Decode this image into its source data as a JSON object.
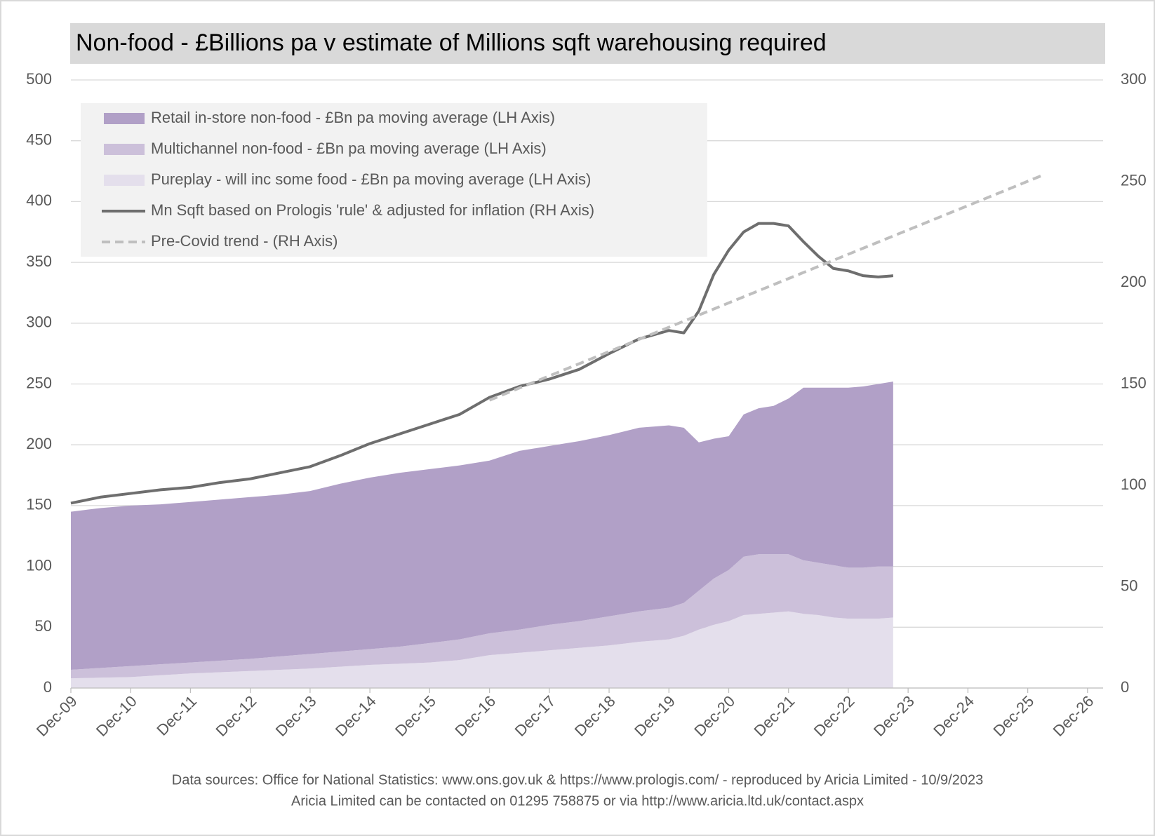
{
  "chart_data": {
    "type": "area",
    "title": "Non-food - £Billions pa v estimate of Millions sqft warehousing required",
    "x": [
      2009.92,
      2010.42,
      2010.92,
      2011.42,
      2011.92,
      2012.42,
      2012.92,
      2013.42,
      2013.92,
      2014.42,
      2014.92,
      2015.42,
      2015.92,
      2016.42,
      2016.92,
      2017.42,
      2017.92,
      2018.42,
      2018.92,
      2019.42,
      2019.92,
      2020.17,
      2020.42,
      2020.67,
      2020.92,
      2021.17,
      2021.42,
      2021.67,
      2021.92,
      2022.17,
      2022.42,
      2022.67,
      2022.92,
      2023.17,
      2023.42,
      2023.67
    ],
    "series": [
      {
        "name": "Retail in-store non-food - £Bn pa moving average (LH Axis)",
        "type": "area",
        "color": "#b1a0c7",
        "values": [
          130,
          131.5,
          132,
          131.5,
          132,
          132.5,
          133,
          133,
          134,
          138,
          141,
          143,
          143,
          143,
          142,
          147,
          147,
          148,
          149,
          151,
          150,
          144,
          122,
          115,
          110,
          117,
          120,
          122,
          128,
          142,
          144,
          146,
          148,
          149,
          150,
          152
        ]
      },
      {
        "name": "Multichannel non-food - £Bn pa moving average (LH Axis)",
        "type": "area",
        "color": "#ccc0da",
        "values": [
          7,
          8,
          9,
          9,
          9,
          9.5,
          10,
          11,
          12,
          12.5,
          13,
          14,
          16,
          17,
          18,
          19,
          21,
          22,
          24,
          25,
          26,
          27,
          32,
          38,
          42,
          48,
          49,
          48,
          47,
          44,
          43,
          43,
          42,
          42,
          43,
          42
        ]
      },
      {
        "name": "Pureplay - will inc some food - £Bn pa moving average (LH Axis)",
        "type": "area",
        "color": "#e4dfec",
        "values": [
          8,
          8.5,
          9,
          10.5,
          12,
          13,
          14,
          15,
          16,
          17.5,
          19,
          20,
          21,
          23,
          27,
          29,
          31,
          33,
          35,
          38,
          40,
          43,
          48,
          52,
          55,
          60,
          61,
          62,
          63,
          61,
          60,
          58,
          57,
          57,
          57,
          58
        ]
      },
      {
        "name": "Mn Sqft based on Prologis 'rule' & adjusted for inflation (RH Axis)",
        "type": "line",
        "axis": "y2",
        "color": "#6e6e6e",
        "values": [
          91.2,
          94.2,
          96,
          97.8,
          99,
          101.4,
          103.2,
          106.2,
          109.2,
          114.6,
          120.6,
          125.4,
          130.2,
          135,
          143.4,
          148.8,
          152.4,
          157.2,
          165,
          172.2,
          176.4,
          175.2,
          186,
          204,
          216,
          225,
          229.2,
          229.2,
          228,
          220.2,
          213,
          207,
          205.8,
          203.4,
          202.8,
          203.4
        ]
      },
      {
        "name": "Pre-Covid trend - (RH Axis)",
        "type": "line",
        "axis": "y2",
        "dashed": true,
        "color": "#bfbfbf",
        "x": [
          2016.92,
          2026.17
        ],
        "values": [
          142,
          253
        ]
      }
    ],
    "xlim": [
      2009.92,
      2027.18
    ],
    "xticks": [
      {
        "value": 2009.92,
        "label": "Dec-09"
      },
      {
        "value": 2010.92,
        "label": "Dec-10"
      },
      {
        "value": 2011.92,
        "label": "Dec-11"
      },
      {
        "value": 2012.92,
        "label": "Dec-12"
      },
      {
        "value": 2013.92,
        "label": "Dec-13"
      },
      {
        "value": 2014.92,
        "label": "Dec-14"
      },
      {
        "value": 2015.92,
        "label": "Dec-15"
      },
      {
        "value": 2016.92,
        "label": "Dec-16"
      },
      {
        "value": 2017.92,
        "label": "Dec-17"
      },
      {
        "value": 2018.92,
        "label": "Dec-18"
      },
      {
        "value": 2019.92,
        "label": "Dec-19"
      },
      {
        "value": 2020.92,
        "label": "Dec-20"
      },
      {
        "value": 2021.92,
        "label": "Dec-21"
      },
      {
        "value": 2022.92,
        "label": "Dec-22"
      },
      {
        "value": 2023.92,
        "label": "Dec-23"
      },
      {
        "value": 2024.92,
        "label": "Dec-24"
      },
      {
        "value": 2025.92,
        "label": "Dec-25"
      },
      {
        "value": 2026.92,
        "label": "Dec-26"
      }
    ],
    "ylim": [
      0,
      500
    ],
    "yticks": [
      0,
      50,
      100,
      150,
      200,
      250,
      300,
      350,
      400,
      450,
      500
    ],
    "y2lim": [
      0,
      300
    ],
    "y2ticks": [
      0,
      50,
      100,
      150,
      200,
      250,
      300
    ],
    "grid": true,
    "legend": "upper left",
    "annotations": [
      "Data sources: Office for National Statistics: www.ons.gov.uk & https://www.prologis.com/ - reproduced by Aricia Limited - 10/9/2023",
      "Aricia Limited can be contacted on 01295 758875 or via http://www.aricia.ltd.uk/contact.aspx"
    ]
  }
}
